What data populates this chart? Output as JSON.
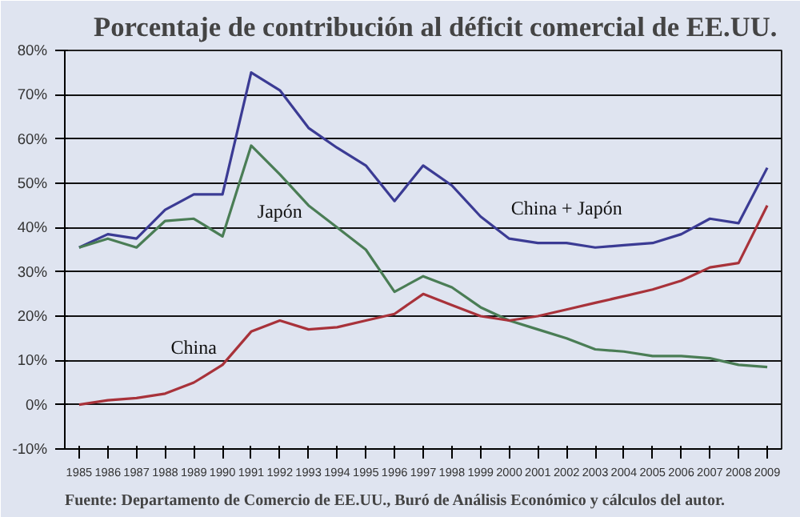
{
  "chart_data": {
    "type": "line",
    "title": "Porcentaje de contribución al déficit comercial de EE.UU.",
    "x": [
      1985,
      1986,
      1987,
      1988,
      1989,
      1990,
      1991,
      1992,
      1993,
      1994,
      1995,
      1996,
      1997,
      1998,
      1999,
      2000,
      2001,
      2002,
      2003,
      2004,
      2005,
      2006,
      2007,
      2008,
      2009
    ],
    "series": [
      {
        "name": "China + Japón",
        "color": "#3b3b94",
        "values": [
          35.5,
          38.5,
          37.5,
          44,
          47.5,
          47.5,
          75,
          71,
          62.5,
          58,
          54,
          46,
          54,
          49.5,
          42.5,
          37.5,
          36.5,
          36.5,
          35.5,
          36,
          36.5,
          38.5,
          42,
          41,
          53.5
        ]
      },
      {
        "name": "Japón",
        "color": "#4a7d55",
        "values": [
          35.5,
          37.5,
          35.5,
          41.5,
          42,
          38,
          58.5,
          52,
          45,
          40,
          35,
          25.5,
          29,
          26.5,
          22,
          19,
          17,
          15,
          12.5,
          12,
          11,
          11,
          10.5,
          9,
          8.5
        ]
      },
      {
        "name": "China",
        "color": "#a8323a",
        "values": [
          0,
          1,
          1.5,
          2.5,
          5,
          9,
          16.5,
          19,
          17,
          17.5,
          19,
          20.5,
          25,
          22.5,
          20,
          19,
          20,
          21.5,
          23,
          24.5,
          26,
          28,
          31,
          32,
          45
        ]
      }
    ],
    "xlim": [
      1984.5,
      2009.5
    ],
    "xticks": [
      1985,
      1986,
      1987,
      1988,
      1989,
      1990,
      1991,
      1992,
      1993,
      1994,
      1995,
      1996,
      1997,
      1998,
      1999,
      2000,
      2001,
      2002,
      2003,
      2004,
      2005,
      2006,
      2007,
      2008,
      2009
    ],
    "ylim": [
      -10,
      80
    ],
    "yticks": [
      {
        "value": -10,
        "label": "-10%"
      },
      {
        "value": 0,
        "label": "0%"
      },
      {
        "value": 10,
        "label": "10%"
      },
      {
        "value": 20,
        "label": "20%"
      },
      {
        "value": 30,
        "label": "30%"
      },
      {
        "value": 40,
        "label": "40%"
      },
      {
        "value": 50,
        "label": "50%"
      },
      {
        "value": 60,
        "label": "60%"
      },
      {
        "value": 70,
        "label": "70%"
      },
      {
        "value": 80,
        "label": "80%"
      }
    ],
    "grid": "y",
    "legend": false,
    "marker": "none",
    "line_style": "solid",
    "annotations": [
      "Fuente: Departamento de Comercio de EE.UU., Buró de Análisis Económico y cálculos del autor."
    ]
  }
}
